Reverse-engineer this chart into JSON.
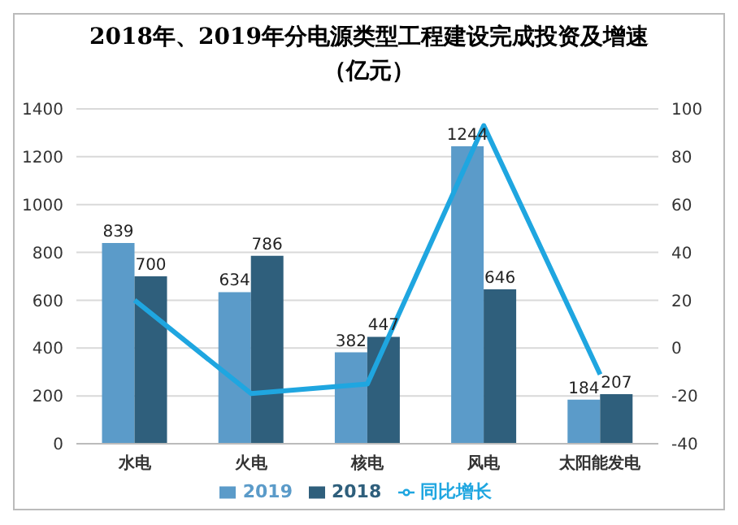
{
  "chart_data": {
    "type": "bar",
    "title": "2018年、2019年分电源类型工程建设完成投资及增速（亿元）",
    "categories": [
      "水电",
      "火电",
      "核电",
      "风电",
      "太阳能发电"
    ],
    "series": [
      {
        "name": "2019",
        "color": "#5b9bc9",
        "values": [
          839,
          634,
          382,
          1244,
          184
        ],
        "value_labels": [
          "839",
          "634",
          "382",
          "1244",
          "184"
        ]
      },
      {
        "name": "2018",
        "color": "#2f5f7c",
        "values": [
          700,
          786,
          447,
          646,
          207
        ],
        "value_labels": [
          "700",
          "786",
          "447",
          "646",
          "207"
        ]
      },
      {
        "name": "同比增长",
        "type": "line",
        "axis": "y2",
        "color": "#1fa6e0",
        "values": [
          20,
          -19,
          -15,
          93,
          -11
        ]
      }
    ],
    "ylim": [
      0,
      1400
    ],
    "yticks": [
      0,
      200,
      400,
      600,
      800,
      1000,
      1200,
      1400
    ],
    "y2lim": [
      -40,
      100
    ],
    "y2ticks": [
      -40,
      -20,
      0,
      20,
      40,
      60,
      80,
      100
    ],
    "grid": "y",
    "legend": "bottom",
    "marker": "none"
  }
}
